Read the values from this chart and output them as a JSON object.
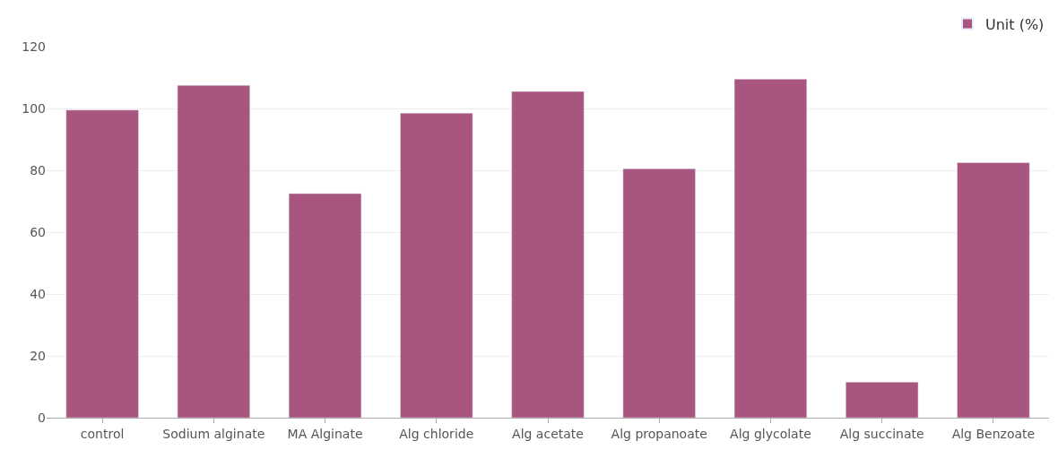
{
  "chart_data": {
    "type": "bar",
    "categories": [
      "control",
      "Sodium alginate",
      "MA Alginate",
      "Alg chloride",
      "Alg acetate",
      "Alg propanoate",
      "Alg glycolate",
      "Alg succinate",
      "Alg Benzoate"
    ],
    "series": [
      {
        "name": "Unit (%)",
        "color": "#a85680",
        "values": [
          99.5,
          107.5,
          72.5,
          98.5,
          105.5,
          80.5,
          109.5,
          11.5,
          82.5
        ]
      }
    ],
    "ylim": [
      0,
      120
    ],
    "yticks": [
      0,
      20,
      40,
      60,
      80,
      100,
      120
    ],
    "grid": "y",
    "legend": "top right"
  }
}
